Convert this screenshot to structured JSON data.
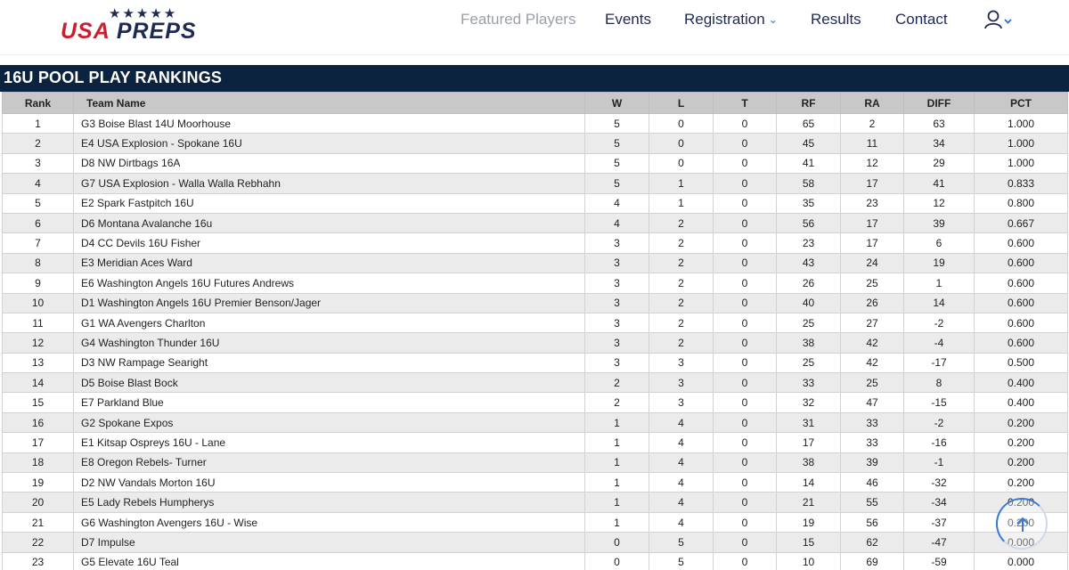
{
  "header": {
    "logo_text": "USA PREPS",
    "logo_usa": "USA",
    "logo_preps": "PREPS",
    "logo_stars": "★★★★★",
    "nav": {
      "featured": "Featured Players",
      "events": "Events",
      "registration": "Registration",
      "results": "Results",
      "contact": "Contact"
    },
    "icons": {
      "logo": "usa-preps-logo",
      "chevron": "chevron-down-icon",
      "user": "user-icon"
    }
  },
  "page": {
    "title": "16U POOL PLAY RANKINGS"
  },
  "table": {
    "columns": [
      "Rank",
      "Team Name",
      "W",
      "L",
      "T",
      "RF",
      "RA",
      "DIFF",
      "PCT"
    ],
    "rows": [
      [
        "1",
        "G3 Boise Blast 14U Moorhouse",
        "5",
        "0",
        "0",
        "65",
        "2",
        "63",
        "1.000"
      ],
      [
        "2",
        "E4 USA Explosion - Spokane 16U",
        "5",
        "0",
        "0",
        "45",
        "11",
        "34",
        "1.000"
      ],
      [
        "3",
        "D8 NW Dirtbags 16A",
        "5",
        "0",
        "0",
        "41",
        "12",
        "29",
        "1.000"
      ],
      [
        "4",
        "G7 USA Explosion - Walla Walla Rebhahn",
        "5",
        "1",
        "0",
        "58",
        "17",
        "41",
        "0.833"
      ],
      [
        "5",
        "E2 Spark Fastpitch 16U",
        "4",
        "1",
        "0",
        "35",
        "23",
        "12",
        "0.800"
      ],
      [
        "6",
        "D6 Montana Avalanche 16u",
        "4",
        "2",
        "0",
        "56",
        "17",
        "39",
        "0.667"
      ],
      [
        "7",
        "D4 CC Devils 16U Fisher",
        "3",
        "2",
        "0",
        "23",
        "17",
        "6",
        "0.600"
      ],
      [
        "8",
        "E3 Meridian Aces Ward",
        "3",
        "2",
        "0",
        "43",
        "24",
        "19",
        "0.600"
      ],
      [
        "9",
        "E6 Washington Angels 16U Futures Andrews",
        "3",
        "2",
        "0",
        "26",
        "25",
        "1",
        "0.600"
      ],
      [
        "10",
        "D1 Washington Angels 16U Premier Benson/Jager",
        "3",
        "2",
        "0",
        "40",
        "26",
        "14",
        "0.600"
      ],
      [
        "11",
        "G1 WA Avengers Charlton",
        "3",
        "2",
        "0",
        "25",
        "27",
        "-2",
        "0.600"
      ],
      [
        "12",
        "G4 Washington Thunder 16U",
        "3",
        "2",
        "0",
        "38",
        "42",
        "-4",
        "0.600"
      ],
      [
        "13",
        "D3 NW Rampage Searight",
        "3",
        "3",
        "0",
        "25",
        "42",
        "-17",
        "0.500"
      ],
      [
        "14",
        "D5 Boise Blast Bock",
        "2",
        "3",
        "0",
        "33",
        "25",
        "8",
        "0.400"
      ],
      [
        "15",
        "E7 Parkland Blue",
        "2",
        "3",
        "0",
        "32",
        "47",
        "-15",
        "0.400"
      ],
      [
        "16",
        "G2 Spokane Expos",
        "1",
        "4",
        "0",
        "31",
        "33",
        "-2",
        "0.200"
      ],
      [
        "17",
        "E1 Kitsap Ospreys 16U - Lane",
        "1",
        "4",
        "0",
        "17",
        "33",
        "-16",
        "0.200"
      ],
      [
        "18",
        "E8 Oregon Rebels- Turner",
        "1",
        "4",
        "0",
        "38",
        "39",
        "-1",
        "0.200"
      ],
      [
        "19",
        "D2 NW Vandals Morton 16U",
        "1",
        "4",
        "0",
        "14",
        "46",
        "-32",
        "0.200"
      ],
      [
        "20",
        "E5 Lady Rebels Humpherys",
        "1",
        "4",
        "0",
        "21",
        "55",
        "-34",
        "0.200"
      ],
      [
        "21",
        "G6 Washington Avengers 16U - Wise",
        "1",
        "4",
        "0",
        "19",
        "56",
        "-37",
        "0.200"
      ],
      [
        "22",
        "D7 Impulse",
        "0",
        "5",
        "0",
        "15",
        "62",
        "-47",
        "0.000"
      ],
      [
        "23",
        "G5 Elevate 16U Teal",
        "0",
        "5",
        "0",
        "10",
        "69",
        "-59",
        "0.000"
      ]
    ]
  },
  "colors": {
    "navy": "#0c2340",
    "brand_red": "#c8202f",
    "brand_navy": "#1f2a52",
    "header_gray": "#c8c8c8",
    "row_alt": "#ebebeb",
    "accent_blue": "#2b6cdc"
  },
  "scroll_top": {
    "icon": "arrow-up-icon"
  }
}
